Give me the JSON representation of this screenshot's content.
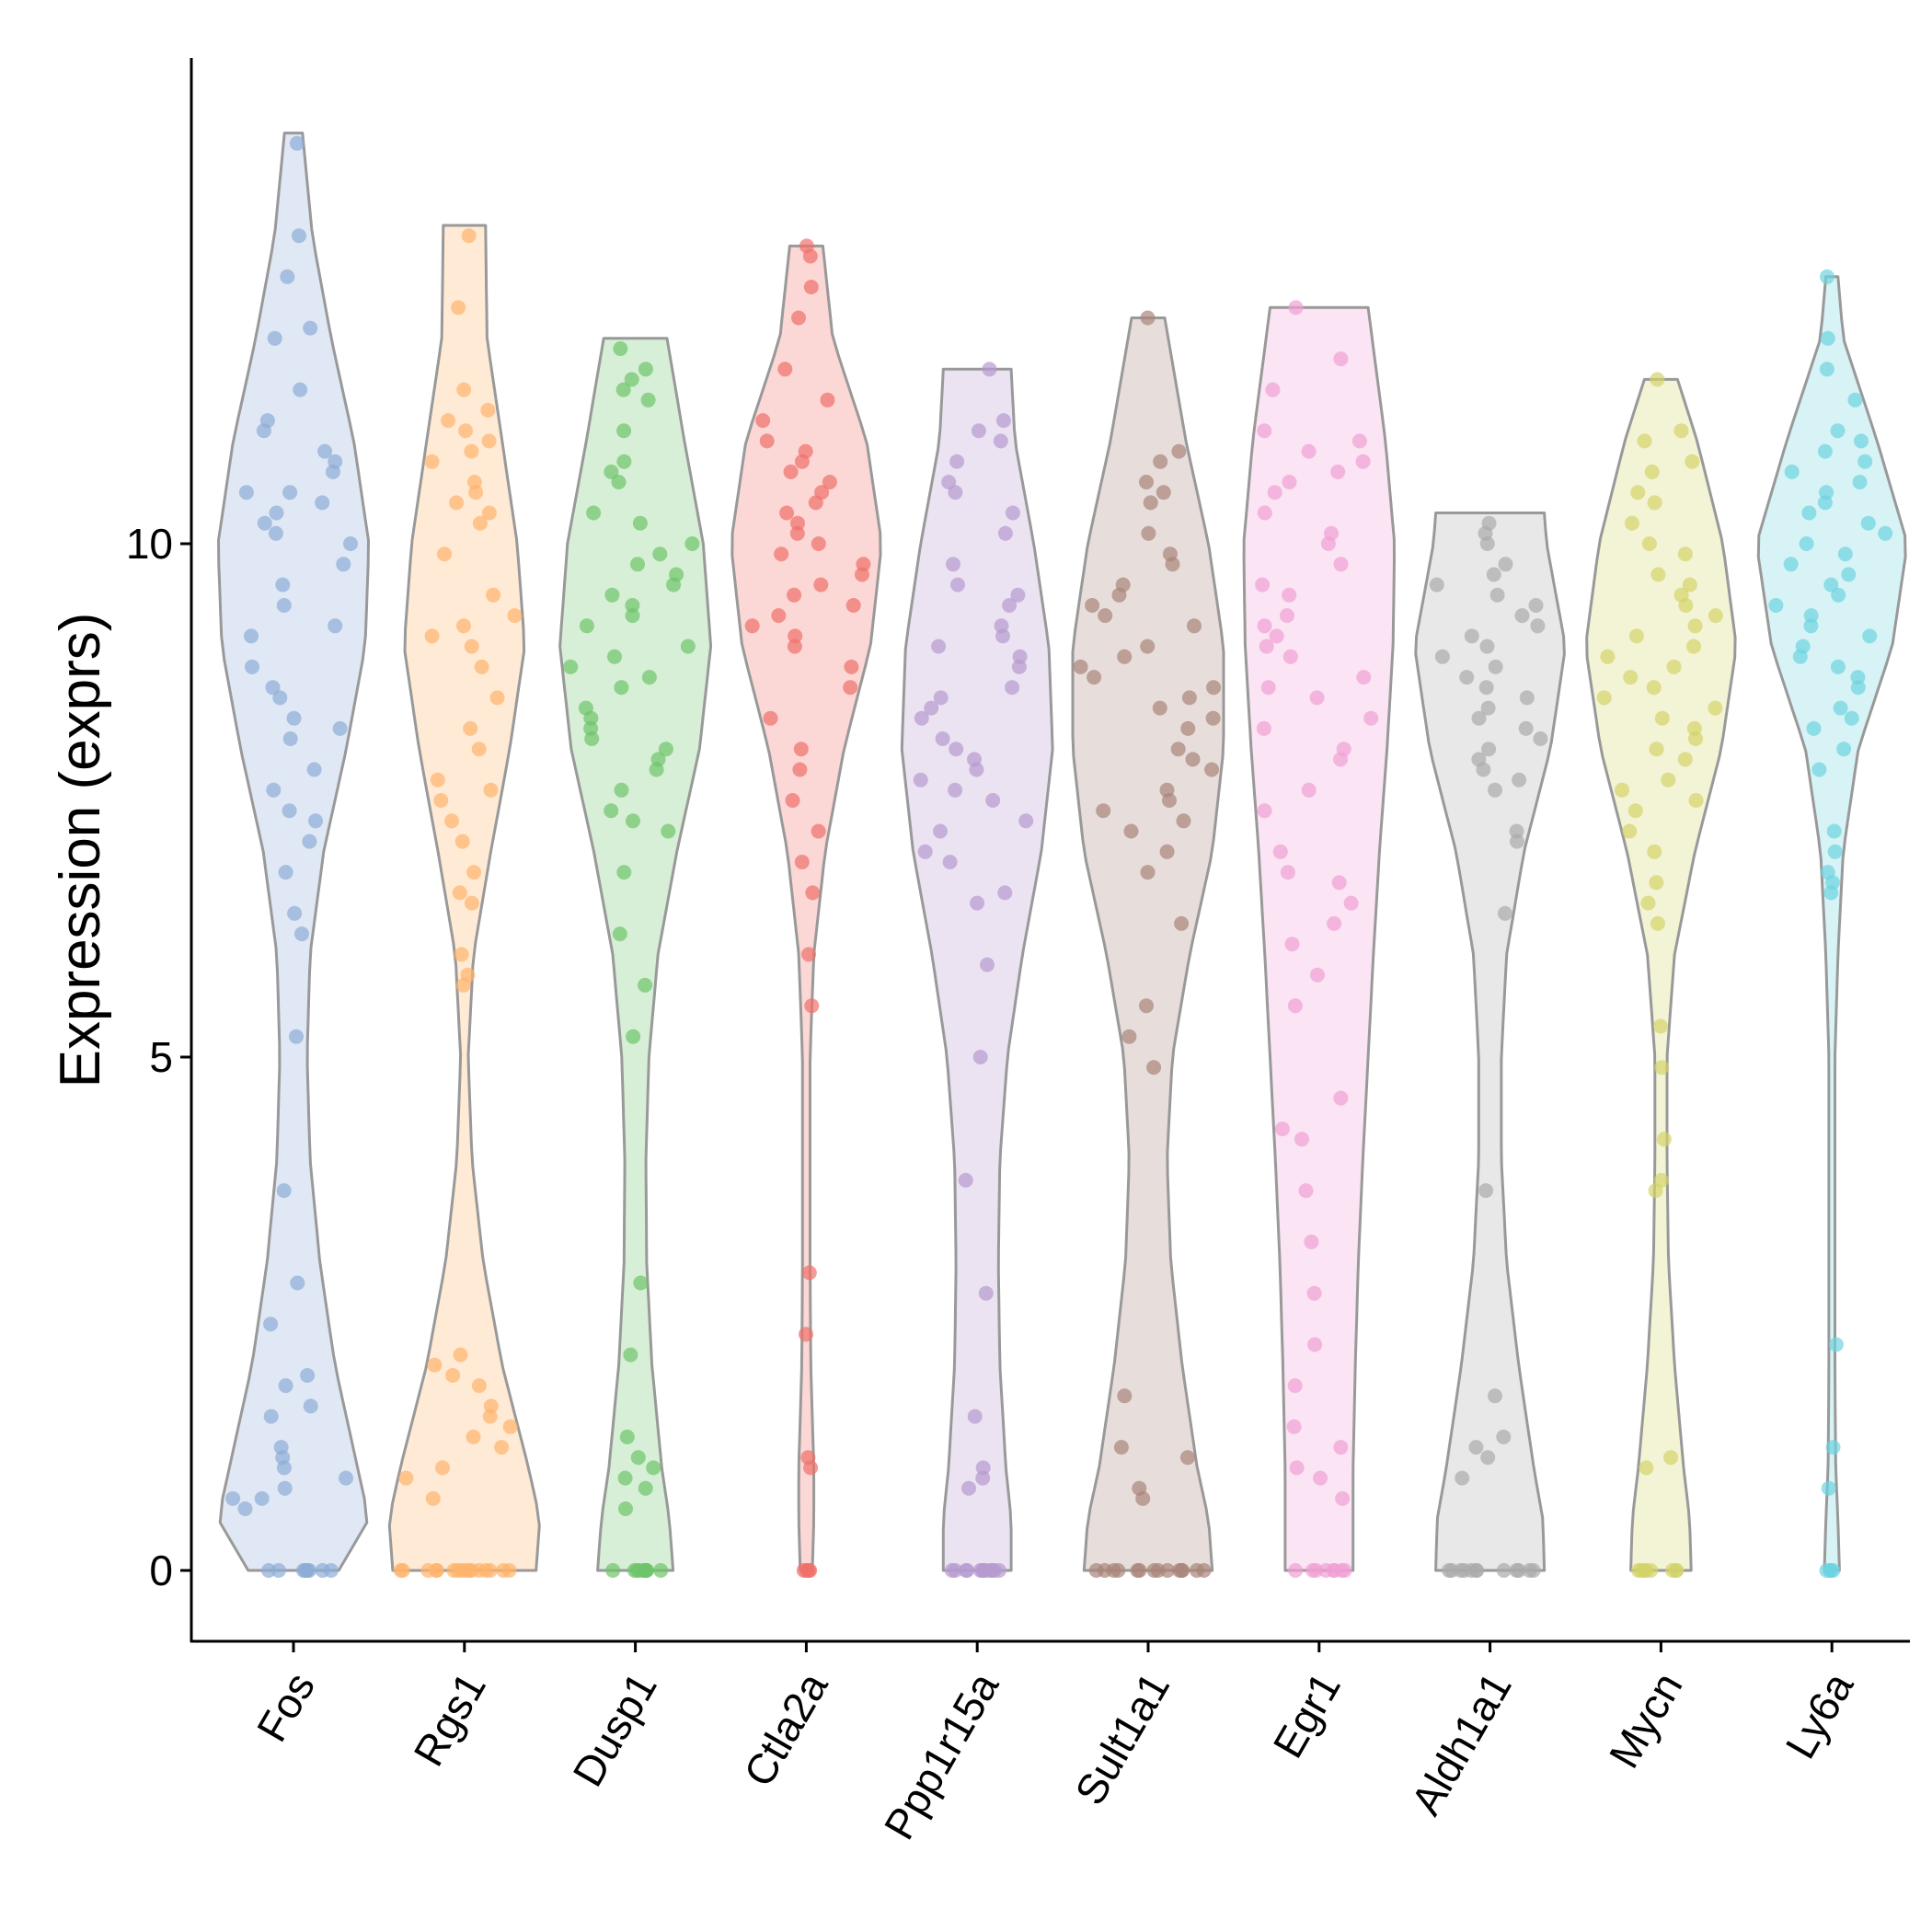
{
  "chart_data": {
    "type": "violin",
    "ylabel": "Expression (exprs)",
    "xlabel": "",
    "ylim": [
      -0.7,
      14.7
    ],
    "y_ticks": [
      0,
      5,
      10
    ],
    "y_tick_labels": [
      "0",
      "5",
      "10"
    ],
    "grid": false,
    "legend": "none",
    "categories": [
      "Fos",
      "Rgs1",
      "Dusp1",
      "Ctla2a",
      "Ppp1r15a",
      "Sult1a1",
      "Egr1",
      "Aldh1a1",
      "Mycn",
      "Ly6a"
    ],
    "colors": [
      "#8DADD6",
      "#FFB36B",
      "#6DC56A",
      "#EF7069",
      "#B79AD0",
      "#A98479",
      "#EF9FD4",
      "#ABABAB",
      "#D3D36A",
      "#6ED3E0"
    ],
    "series": [
      {
        "name": "Fos",
        "max": 14.0,
        "zero_count": 9,
        "profile": [
          [
            0,
            0.6
          ],
          [
            0.5,
            1.0
          ],
          [
            1.0,
            0.85
          ],
          [
            2.0,
            0.55
          ],
          [
            3.0,
            0.35
          ],
          [
            4.0,
            0.22
          ],
          [
            5.0,
            0.18
          ],
          [
            6.0,
            0.22
          ],
          [
            7.0,
            0.4
          ],
          [
            8.0,
            0.7
          ],
          [
            9.0,
            0.95
          ],
          [
            10.0,
            1.0
          ],
          [
            11.0,
            0.8
          ],
          [
            12.0,
            0.5
          ],
          [
            13.0,
            0.25
          ],
          [
            14.0,
            0.12
          ]
        ],
        "values": [
          13.9,
          13.0,
          12.6,
          12.1,
          12.0,
          11.5,
          11.2,
          11.1,
          10.9,
          10.8,
          10.7,
          10.5,
          10.5,
          10.4,
          10.3,
          10.2,
          10.1,
          10.0,
          9.8,
          9.6,
          9.4,
          9.2,
          9.1,
          8.8,
          8.6,
          8.5,
          8.3,
          8.2,
          8.1,
          7.8,
          7.6,
          7.4,
          7.3,
          7.1,
          6.8,
          6.4,
          6.2,
          5.2,
          3.7,
          2.8,
          2.4,
          1.9,
          1.8,
          1.6,
          1.5,
          1.2,
          1.1,
          1.0,
          0.9,
          0.8,
          0.7,
          0.7,
          0.6
        ]
      },
      {
        "name": "Rgs1",
        "max": 13.1,
        "zero_count": 16,
        "profile": [
          [
            0,
            0.95
          ],
          [
            0.5,
            1.0
          ],
          [
            1.0,
            0.85
          ],
          [
            2.0,
            0.5
          ],
          [
            3.0,
            0.25
          ],
          [
            4.0,
            0.1
          ],
          [
            5.0,
            0.05
          ],
          [
            6.0,
            0.12
          ],
          [
            7.0,
            0.35
          ],
          [
            8.0,
            0.6
          ],
          [
            9.0,
            0.8
          ],
          [
            10.0,
            0.7
          ],
          [
            11.0,
            0.5
          ],
          [
            12.0,
            0.3
          ],
          [
            13.1,
            0.28
          ]
        ],
        "values": [
          13.0,
          12.3,
          11.5,
          11.3,
          11.2,
          11.1,
          11.0,
          10.9,
          10.8,
          10.6,
          10.5,
          10.4,
          10.3,
          10.2,
          9.9,
          9.5,
          9.3,
          9.2,
          9.1,
          9.0,
          8.8,
          8.5,
          8.2,
          8.0,
          7.7,
          7.6,
          7.5,
          7.3,
          7.1,
          6.8,
          6.6,
          6.5,
          6.0,
          5.8,
          5.7,
          2.1,
          2.0,
          1.9,
          1.8,
          1.6,
          1.5,
          1.4,
          1.3,
          1.2,
          1.0,
          0.9,
          0.7
        ]
      },
      {
        "name": "Dusp1",
        "max": 12.0,
        "zero_count": 10,
        "profile": [
          [
            0,
            0.5
          ],
          [
            0.5,
            0.45
          ],
          [
            1.0,
            0.35
          ],
          [
            2.0,
            0.22
          ],
          [
            3.0,
            0.15
          ],
          [
            4.0,
            0.14
          ],
          [
            5.0,
            0.18
          ],
          [
            6.0,
            0.3
          ],
          [
            7.0,
            0.55
          ],
          [
            8.0,
            0.85
          ],
          [
            9.0,
            1.0
          ],
          [
            10.0,
            0.9
          ],
          [
            11.0,
            0.65
          ],
          [
            12.0,
            0.42
          ]
        ],
        "values": [
          11.9,
          11.7,
          11.6,
          11.5,
          11.4,
          11.1,
          10.8,
          10.7,
          10.6,
          10.3,
          10.2,
          10.0,
          9.9,
          9.8,
          9.7,
          9.6,
          9.5,
          9.4,
          9.3,
          9.2,
          9.0,
          8.9,
          8.8,
          8.7,
          8.6,
          8.4,
          8.3,
          8.2,
          8.1,
          8.0,
          7.9,
          7.8,
          7.6,
          7.4,
          7.3,
          7.2,
          6.8,
          6.2,
          5.7,
          5.2,
          2.8,
          2.1,
          1.3,
          1.1,
          1.0,
          0.9,
          0.8,
          0.6
        ]
      },
      {
        "name": "Ctla2a",
        "max": 12.9,
        "zero_count": 4,
        "profile": [
          [
            0,
            0.08
          ],
          [
            0.5,
            0.1
          ],
          [
            1.0,
            0.1
          ],
          [
            2.0,
            0.06
          ],
          [
            3.0,
            0.05
          ],
          [
            4.0,
            0.05
          ],
          [
            5.0,
            0.05
          ],
          [
            6.0,
            0.1
          ],
          [
            7.0,
            0.25
          ],
          [
            8.0,
            0.5
          ],
          [
            9.0,
            0.85
          ],
          [
            10.0,
            1.0
          ],
          [
            11.0,
            0.8
          ],
          [
            12.0,
            0.35
          ],
          [
            12.9,
            0.22
          ]
        ],
        "values": [
          12.9,
          12.8,
          12.5,
          12.2,
          11.7,
          11.4,
          11.2,
          11.0,
          10.9,
          10.8,
          10.7,
          10.6,
          10.5,
          10.4,
          10.3,
          10.2,
          10.1,
          10.0,
          9.9,
          9.8,
          9.7,
          9.6,
          9.5,
          9.4,
          9.3,
          9.2,
          9.1,
          9.0,
          8.8,
          8.6,
          8.3,
          8.0,
          7.8,
          7.5,
          7.2,
          6.9,
          6.6,
          6.0,
          5.5,
          2.9,
          2.3,
          1.1,
          1.0
        ]
      },
      {
        "name": "Ppp1r15a",
        "max": 11.7,
        "zero_count": 12,
        "profile": [
          [
            0,
            0.45
          ],
          [
            0.5,
            0.45
          ],
          [
            1.0,
            0.38
          ],
          [
            2.0,
            0.3
          ],
          [
            3.0,
            0.28
          ],
          [
            4.0,
            0.3
          ],
          [
            5.0,
            0.4
          ],
          [
            6.0,
            0.6
          ],
          [
            7.0,
            0.85
          ],
          [
            8.0,
            1.0
          ],
          [
            9.0,
            0.95
          ],
          [
            10.0,
            0.75
          ],
          [
            11.0,
            0.5
          ],
          [
            11.7,
            0.45
          ]
        ],
        "values": [
          11.7,
          11.2,
          11.1,
          11.0,
          10.8,
          10.6,
          10.5,
          10.3,
          10.1,
          9.8,
          9.6,
          9.5,
          9.4,
          9.2,
          9.1,
          9.0,
          8.9,
          8.8,
          8.6,
          8.5,
          8.4,
          8.3,
          8.1,
          8.0,
          7.9,
          7.8,
          7.7,
          7.6,
          7.5,
          7.3,
          7.2,
          7.0,
          6.9,
          6.6,
          6.5,
          5.9,
          5.0,
          3.8,
          2.7,
          1.5,
          1.0,
          0.9,
          0.8
        ]
      },
      {
        "name": "Sult1a1",
        "max": 12.2,
        "zero_count": 14,
        "profile": [
          [
            0,
            0.85
          ],
          [
            0.5,
            0.8
          ],
          [
            1.0,
            0.65
          ],
          [
            2.0,
            0.45
          ],
          [
            3.0,
            0.3
          ],
          [
            4.0,
            0.25
          ],
          [
            5.0,
            0.32
          ],
          [
            6.0,
            0.55
          ],
          [
            7.0,
            0.85
          ],
          [
            8.0,
            1.0
          ],
          [
            9.0,
            1.0
          ],
          [
            10.0,
            0.8
          ],
          [
            11.0,
            0.5
          ],
          [
            12.2,
            0.22
          ]
        ],
        "values": [
          12.2,
          10.9,
          10.8,
          10.6,
          10.5,
          10.4,
          10.1,
          9.9,
          9.8,
          9.6,
          9.5,
          9.4,
          9.3,
          9.2,
          9.0,
          8.9,
          8.8,
          8.7,
          8.6,
          8.5,
          8.4,
          8.3,
          8.2,
          8.0,
          7.9,
          7.8,
          7.6,
          7.5,
          7.4,
          7.3,
          7.2,
          7.0,
          6.8,
          6.3,
          5.5,
          5.2,
          4.9,
          1.7,
          1.2,
          1.1,
          0.8,
          0.7
        ]
      },
      {
        "name": "Egr1",
        "max": 12.3,
        "zero_count": 8,
        "profile": [
          [
            0,
            0.45
          ],
          [
            0.5,
            0.45
          ],
          [
            1.0,
            0.45
          ],
          [
            2.0,
            0.48
          ],
          [
            3.0,
            0.52
          ],
          [
            4.0,
            0.58
          ],
          [
            5.0,
            0.65
          ],
          [
            6.0,
            0.72
          ],
          [
            7.0,
            0.8
          ],
          [
            8.0,
            0.9
          ],
          [
            9.0,
            0.98
          ],
          [
            10.0,
            1.0
          ],
          [
            11.0,
            0.88
          ],
          [
            12.3,
            0.65
          ]
        ],
        "values": [
          12.3,
          11.8,
          11.5,
          11.1,
          11.0,
          10.9,
          10.8,
          10.7,
          10.6,
          10.5,
          10.3,
          10.1,
          10.0,
          9.8,
          9.6,
          9.5,
          9.3,
          9.2,
          9.1,
          9.0,
          8.9,
          8.7,
          8.6,
          8.5,
          8.3,
          8.2,
          8.0,
          7.9,
          7.6,
          7.4,
          7.0,
          6.8,
          6.7,
          6.5,
          6.3,
          6.1,
          5.8,
          5.5,
          4.6,
          4.3,
          4.2,
          3.7,
          3.2,
          2.7,
          2.2,
          1.8,
          1.4,
          1.2,
          1.0,
          0.9,
          0.7
        ]
      },
      {
        "name": "Aldh1a1",
        "max": 10.3,
        "zero_count": 12,
        "profile": [
          [
            0,
            0.72
          ],
          [
            0.5,
            0.7
          ],
          [
            1.0,
            0.58
          ],
          [
            2.0,
            0.38
          ],
          [
            3.0,
            0.22
          ],
          [
            4.0,
            0.15
          ],
          [
            5.0,
            0.15
          ],
          [
            6.0,
            0.22
          ],
          [
            7.0,
            0.45
          ],
          [
            8.0,
            0.8
          ],
          [
            9.0,
            1.0
          ],
          [
            10.0,
            0.75
          ],
          [
            10.3,
            0.72
          ]
        ],
        "values": [
          10.2,
          10.1,
          10.0,
          9.8,
          9.7,
          9.6,
          9.5,
          9.4,
          9.3,
          9.2,
          9.1,
          9.0,
          8.9,
          8.8,
          8.7,
          8.6,
          8.5,
          8.4,
          8.3,
          8.2,
          8.1,
          8.0,
          7.9,
          7.8,
          7.7,
          7.6,
          7.2,
          7.1,
          6.4,
          3.7,
          1.7,
          1.3,
          1.2,
          1.1,
          0.9
        ]
      },
      {
        "name": "Mycn",
        "max": 11.6,
        "zero_count": 8,
        "profile": [
          [
            0,
            0.4
          ],
          [
            0.5,
            0.38
          ],
          [
            1.0,
            0.3
          ],
          [
            2.0,
            0.18
          ],
          [
            3.0,
            0.1
          ],
          [
            4.0,
            0.08
          ],
          [
            5.0,
            0.08
          ],
          [
            6.0,
            0.18
          ],
          [
            7.0,
            0.45
          ],
          [
            8.0,
            0.8
          ],
          [
            9.0,
            1.0
          ],
          [
            10.0,
            0.82
          ],
          [
            11.0,
            0.48
          ],
          [
            11.6,
            0.22
          ]
        ],
        "values": [
          11.6,
          11.1,
          11.0,
          10.8,
          10.7,
          10.5,
          10.4,
          10.2,
          10.0,
          9.9,
          9.7,
          9.6,
          9.5,
          9.4,
          9.3,
          9.2,
          9.1,
          9.0,
          8.9,
          8.8,
          8.7,
          8.6,
          8.5,
          8.4,
          8.3,
          8.2,
          8.1,
          8.0,
          7.9,
          7.7,
          7.6,
          7.5,
          7.4,
          7.2,
          7.0,
          6.7,
          6.5,
          6.3,
          5.3,
          4.9,
          4.2,
          3.8,
          3.7,
          1.1,
          1.0
        ]
      },
      {
        "name": "Ly6a",
        "max": 12.6,
        "zero_count": 4,
        "profile": [
          [
            0,
            0.1
          ],
          [
            0.5,
            0.08
          ],
          [
            1.0,
            0.05
          ],
          [
            2.0,
            0.04
          ],
          [
            3.0,
            0.04
          ],
          [
            4.0,
            0.04
          ],
          [
            5.0,
            0.04
          ],
          [
            6.0,
            0.08
          ],
          [
            7.0,
            0.15
          ],
          [
            8.0,
            0.35
          ],
          [
            9.0,
            0.8
          ],
          [
            10.0,
            1.0
          ],
          [
            11.0,
            0.6
          ],
          [
            12.0,
            0.15
          ],
          [
            12.6,
            0.08
          ]
        ],
        "values": [
          12.6,
          12.0,
          11.7,
          11.4,
          11.1,
          11.0,
          10.9,
          10.8,
          10.7,
          10.6,
          10.5,
          10.4,
          10.3,
          10.2,
          10.1,
          10.0,
          9.9,
          9.8,
          9.7,
          9.6,
          9.5,
          9.4,
          9.3,
          9.2,
          9.1,
          9.0,
          8.9,
          8.8,
          8.7,
          8.6,
          8.4,
          8.3,
          8.2,
          8.0,
          7.8,
          7.2,
          7.0,
          6.8,
          6.7,
          6.6,
          2.2,
          1.2,
          0.8
        ]
      }
    ]
  }
}
